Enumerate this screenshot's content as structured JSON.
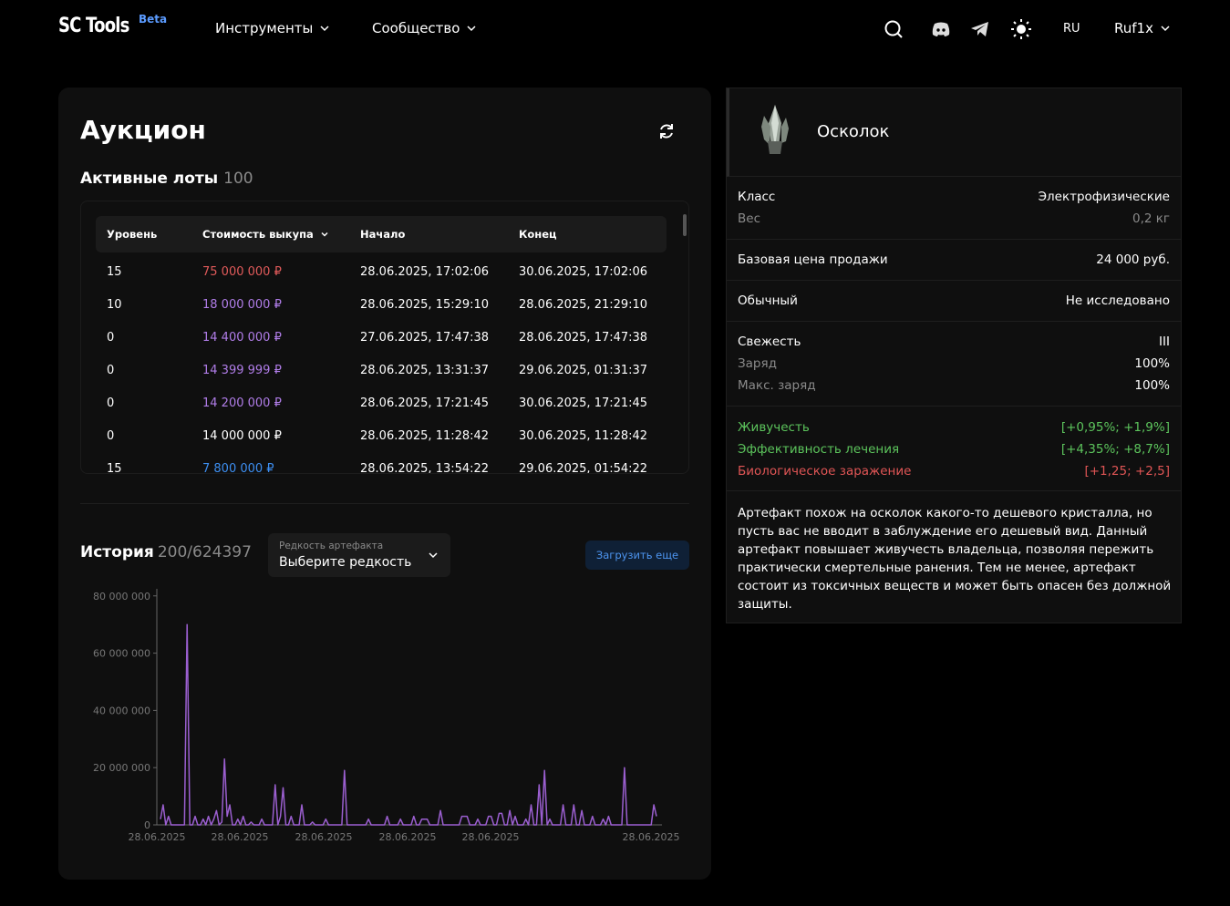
{
  "header": {
    "logo": "SC Tools",
    "beta": "Beta",
    "nav": [
      "Инструменты",
      "Сообщество"
    ],
    "lang": "RU",
    "user": "Ruf1x"
  },
  "auction": {
    "title": "Аукцион",
    "lots_label": "Активные лоты",
    "lots_count": "100",
    "columns": [
      "Уровень",
      "Стоимость выкупа",
      "Начало",
      "Конец"
    ],
    "rows": [
      {
        "level": "15",
        "price": "75 000 000 ₽",
        "price_color": "#e05a5a",
        "start": "28.06.2025, 17:02:06",
        "end": "30.06.2025, 17:02:06"
      },
      {
        "level": "10",
        "price": "18 000 000 ₽",
        "price_color": "#b07de8",
        "start": "28.06.2025, 15:29:10",
        "end": "28.06.2025, 21:29:10"
      },
      {
        "level": "0",
        "price": "14 400 000 ₽",
        "price_color": "#b07de8",
        "start": "27.06.2025, 17:47:38",
        "end": "28.06.2025, 17:47:38"
      },
      {
        "level": "0",
        "price": "14 399 999 ₽",
        "price_color": "#b07de8",
        "start": "28.06.2025, 13:31:37",
        "end": "29.06.2025, 01:31:37"
      },
      {
        "level": "0",
        "price": "14 200 000 ₽",
        "price_color": "#b07de8",
        "start": "28.06.2025, 17:21:45",
        "end": "30.06.2025, 17:21:45"
      },
      {
        "level": "0",
        "price": "14 000 000 ₽",
        "price_color": "#ffffff",
        "start": "28.06.2025, 11:28:42",
        "end": "30.06.2025, 11:28:42"
      },
      {
        "level": "15",
        "price": "7 800 000 ₽",
        "price_color": "#3d8ef0",
        "start": "28.06.2025, 13:54:22",
        "end": "29.06.2025, 01:54:22"
      }
    ],
    "history_label": "История",
    "history_count": "200/624397",
    "rarity_label": "Редкость артефакта",
    "rarity_value": "Выберите редкость",
    "load_more": "Загрузить еще"
  },
  "chart_data": {
    "type": "line",
    "color": "#9b5fd0",
    "y_ticks": [
      "80 000 000",
      "60 000 000",
      "40 000 000",
      "20 000 000",
      "0"
    ],
    "y_tick_values": [
      80000000,
      60000000,
      40000000,
      20000000,
      0
    ],
    "ylim": [
      0,
      80000000
    ],
    "x_ticks": [
      "28.06.2025",
      "28.06.2025",
      "28.06.2025",
      "28.06.2025",
      "28.06.2025",
      "28.06.2025"
    ],
    "values": [
      2000000,
      7000000,
      0,
      3000000,
      0,
      0,
      0,
      0,
      0,
      0,
      70000000,
      0,
      0,
      3000000,
      0,
      0,
      2000000,
      0,
      3000000,
      0,
      2000000,
      5000000,
      0,
      1000000,
      23000000,
      3000000,
      7000000,
      0,
      0,
      2000000,
      0,
      3000000,
      0,
      0,
      1000000,
      0,
      0,
      0,
      2000000,
      0,
      0,
      0,
      0,
      14000000,
      0,
      3000000,
      13000000,
      0,
      0,
      3000000,
      0,
      0,
      0,
      7000000,
      0,
      0,
      0,
      1000000,
      0,
      0,
      0,
      0,
      2000000,
      0,
      0,
      0,
      0,
      0,
      0,
      19000000,
      0,
      0,
      0,
      0,
      0,
      0,
      0,
      0,
      2000000,
      0,
      0,
      0,
      0,
      0,
      0,
      3000000,
      0,
      0,
      0,
      0,
      2000000,
      0,
      0,
      0,
      0,
      3000000,
      0,
      0,
      2000000,
      2000000,
      2000000,
      0,
      0,
      0,
      0,
      5000000,
      0,
      0,
      0,
      0,
      0,
      0,
      0,
      3000000,
      3000000,
      3000000,
      0,
      0,
      0,
      2000000,
      0,
      0,
      0,
      3000000,
      3000000,
      0,
      0,
      4000000,
      4000000,
      0,
      0,
      5000000,
      0,
      3000000,
      0,
      0,
      0,
      2000000,
      0,
      7000000,
      0,
      0,
      14000000,
      0,
      19000000,
      0,
      2000000,
      0,
      0,
      0,
      0,
      7000000,
      0,
      0,
      0,
      7000000,
      0,
      0,
      5000000,
      0,
      0,
      0,
      3000000,
      0,
      0,
      0,
      2000000,
      0,
      3000000,
      0,
      0,
      0,
      0,
      0,
      20000000,
      0,
      0,
      0,
      0,
      0,
      0,
      0,
      0,
      0,
      0,
      7000000,
      3000000
    ]
  },
  "item": {
    "name": "Осколок",
    "class_label": "Класс",
    "class_value": "Электрофизические",
    "weight_label": "Вес",
    "weight_value": "0,2 кг",
    "base_price_label": "Базовая цена продажи",
    "base_price_value": "24 000 руб.",
    "rarity_label": "Обычный",
    "rarity_value": "Не исследовано",
    "freshness_label": "Свежесть",
    "freshness_value": "III",
    "charge_label": "Заряд",
    "charge_value": "100%",
    "max_charge_label": "Макс. заряд",
    "max_charge_value": "100%",
    "stats": [
      {
        "label": "Живучесть",
        "value": "[+0,95%; +1,9%]",
        "color": "green"
      },
      {
        "label": "Эффективность лечения",
        "value": "[+4,35%; +8,7%]",
        "color": "green"
      },
      {
        "label": "Биологическое заражение",
        "value": "[+1,25; +2,5]",
        "color": "red"
      }
    ],
    "description": "Артефакт похож на осколок какого-то дешевого кристалла, но пусть вас не вводит в заблуждение его дешевый вид. Данный артефакт повышает живучесть владельца, позволяя пережить практически смертельные ранения. Тем не менее, артефакт состоит из токсичных веществ и может быть опасен без должной защиты."
  }
}
